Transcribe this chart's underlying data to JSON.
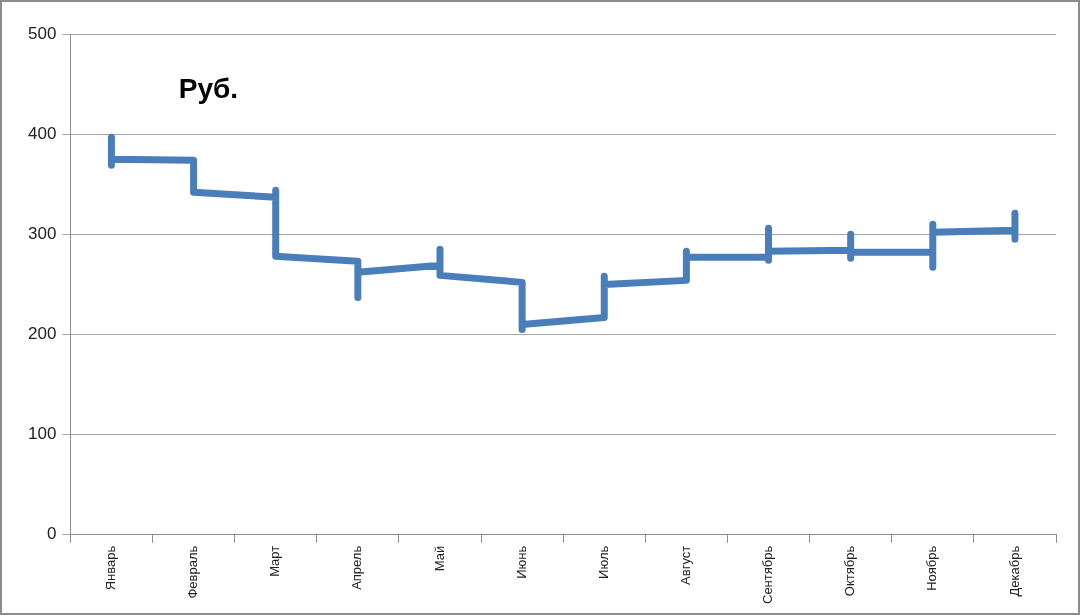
{
  "chart_data": {
    "type": "line",
    "title": "Руб.",
    "categories": [
      "Январь",
      "Февраль",
      "Март",
      "Апрель",
      "Май",
      "Июнь",
      "Июль",
      "Август",
      "Сентябрь",
      "Октябрь",
      "Ноябрь",
      "Декабрь"
    ],
    "series": [
      {
        "color": "#4a7ebb",
        "x": [
          "Январь",
          "Январь",
          "Январь",
          "Январь",
          "Февраль",
          "Февраль",
          "Март",
          "Март",
          "Март",
          "Апрель",
          "Апрель",
          "Апрель",
          "Май",
          "Май",
          "Май",
          "Июнь",
          "Июнь",
          "Июнь",
          "Июль",
          "Июль",
          "Июль",
          "Август",
          "Август",
          "Август",
          "Сентябрь",
          "Сентябрь",
          "Сентябрь",
          "Сентябрь",
          "Октябрь",
          "Октябрь",
          "Октябрь",
          "Октябрь",
          "Ноябрь",
          "Ноябрь",
          "Ноябрь",
          "Ноябрь",
          "Декабрь",
          "Декабрь",
          "Декабрь"
        ],
        "values": [
          391,
          397,
          369,
          375,
          374,
          342,
          337,
          344,
          278,
          273,
          237,
          262,
          269,
          285,
          259,
          252,
          205,
          210,
          217,
          258,
          250,
          254,
          283,
          277,
          277,
          306,
          274,
          283,
          284,
          300,
          276,
          282,
          282,
          310,
          267,
          302,
          304,
          321,
          295
        ]
      }
    ],
    "ylim": [
      0,
      500
    ],
    "yticks": [
      0,
      100,
      200,
      300,
      400,
      500
    ],
    "grid": "y",
    "marker": "none",
    "line_style": "solid"
  }
}
